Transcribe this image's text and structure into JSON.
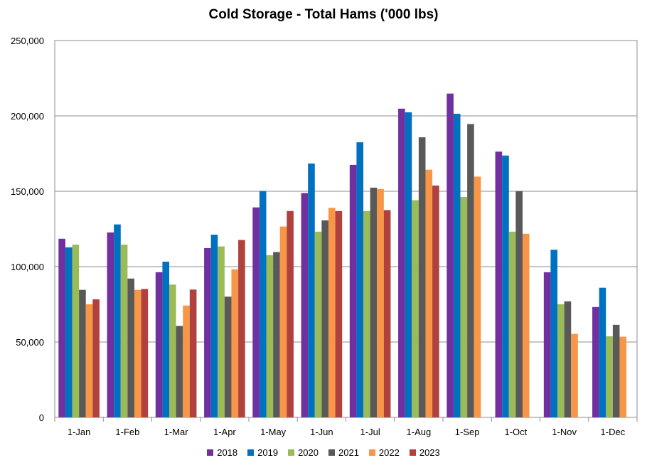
{
  "chart_data": {
    "type": "bar",
    "title": "Cold Storage - Total Hams ('000 lbs)",
    "xlabel": "",
    "ylabel": "",
    "ylim": [
      0,
      250000
    ],
    "yticks": [
      0,
      50000,
      100000,
      150000,
      200000,
      250000
    ],
    "ytick_labels": [
      "0",
      "50,000",
      "100,000",
      "150,000",
      "200,000",
      "250,000"
    ],
    "grid": true,
    "legend_position": "bottom",
    "categories": [
      "1-Jan",
      "1-Feb",
      "1-Mar",
      "1-Apr",
      "1-May",
      "1-Jun",
      "1-Jul",
      "1-Aug",
      "1-Sep",
      "1-Oct",
      "1-Nov",
      "1-Dec"
    ],
    "series": [
      {
        "name": "2018",
        "color": "#7030a0",
        "values": [
          118500,
          122700,
          96300,
          112300,
          139300,
          148800,
          167500,
          204800,
          214800,
          176300,
          96300,
          73200
        ]
      },
      {
        "name": "2019",
        "color": "#0070c0",
        "values": [
          112800,
          128000,
          103300,
          121200,
          150200,
          168400,
          182500,
          202400,
          201400,
          173700,
          111200,
          86000
        ]
      },
      {
        "name": "2020",
        "color": "#9bbb59",
        "values": [
          114600,
          114600,
          88100,
          113400,
          107600,
          123200,
          136900,
          144100,
          146200,
          123200,
          75100,
          53800
        ]
      },
      {
        "name": "2021",
        "color": "#595959",
        "values": [
          84600,
          92100,
          60700,
          80100,
          109700,
          130700,
          152400,
          185800,
          194600,
          150100,
          77000,
          61400
        ]
      },
      {
        "name": "2022",
        "color": "#f79646",
        "values": [
          75100,
          84600,
          74200,
          98200,
          126600,
          139000,
          151500,
          164300,
          159700,
          121800,
          55400,
          53500
        ]
      },
      {
        "name": "2023",
        "color": "#b0413e",
        "values": [
          78300,
          85200,
          84800,
          117700,
          136900,
          136900,
          137500,
          153800,
          null,
          null,
          null,
          null
        ]
      }
    ]
  }
}
